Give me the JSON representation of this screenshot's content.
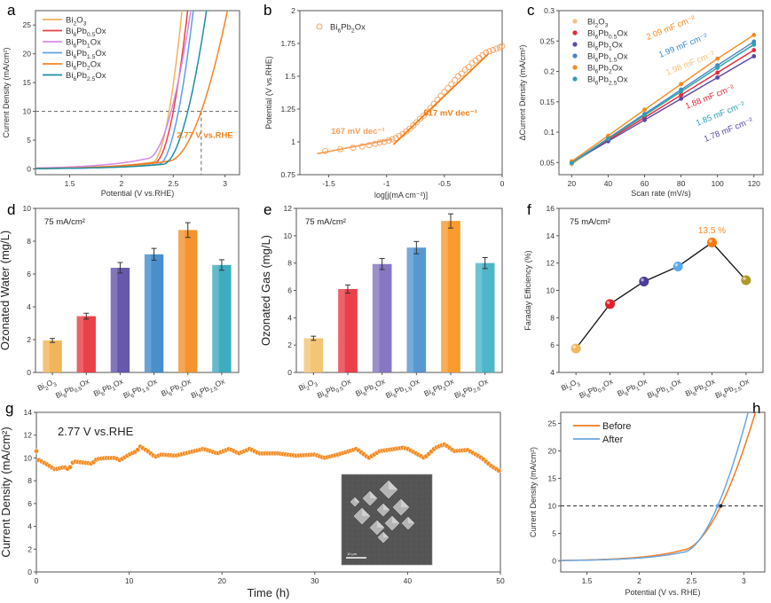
{
  "figure": {
    "panels": [
      "a",
      "b",
      "c",
      "d",
      "e",
      "f",
      "g",
      "h"
    ]
  },
  "chart_data": [
    {
      "id": "a",
      "type": "line",
      "letter": "a",
      "xlabel": "Potential (V vs.RHE)",
      "ylabel": "Current Density (mA/cm²)",
      "xlim": [
        1.17,
        3.14
      ],
      "ylim": [
        -1,
        27.5
      ],
      "xticks": [
        "1.5",
        "2",
        "2.5",
        "3"
      ],
      "xtick_values": [
        1.5,
        2,
        2.5,
        3
      ],
      "yticks": [
        "0",
        "5",
        "10",
        "15",
        "20",
        "25"
      ],
      "ytick_values": [
        0,
        5,
        10,
        15,
        20,
        25
      ],
      "reference_line_y": 10,
      "reference_line_x": 2.77,
      "annotation": "2.77 V vs.RHE",
      "annotation_color": "#f5841f",
      "legend": [
        "Bi2O3",
        "Bi6Pb0.5Ox",
        "Bi6Pb1Ox",
        "Bi6Pb1.5Ox",
        "Bi6Pb2Ox",
        "Bi6Pb2.5Ox"
      ],
      "series": [
        {
          "name": "Bi2O3",
          "color": "#f0b35a",
          "onset": 2.3,
          "v10": 2.46,
          "base": 1.3
        },
        {
          "name": "Bi6Pb0.5Ox",
          "color": "#e8434a",
          "onset": 2.32,
          "v10": 2.5,
          "base": 1.2
        },
        {
          "name": "Bi6Pb1Ox",
          "color": "#d58be6",
          "onset": 2.25,
          "v10": 2.48,
          "base": 2.0
        },
        {
          "name": "Bi6Pb1.5Ox",
          "color": "#5aa0e6",
          "onset": 2.36,
          "v10": 2.55,
          "base": 0.9
        },
        {
          "name": "Bi6Pb2Ox",
          "color": "#f5841f",
          "onset": 2.45,
          "v10": 2.77,
          "base": 1.5
        },
        {
          "name": "Bi6Pb2.5Ox",
          "color": "#1f8fa0",
          "onset": 2.4,
          "v10": 2.64,
          "base": 0.9
        }
      ]
    },
    {
      "id": "b",
      "type": "scatter",
      "letter": "b",
      "xlabel": "log[j(mA cm⁻²)]",
      "ylabel": "Potential (V vs.RHE)",
      "xlim": [
        -1.75,
        0
      ],
      "ylim": [
        0.75,
        2
      ],
      "xticks": [
        "-1.5",
        "-1",
        "-0.5",
        "0"
      ],
      "xtick_values": [
        -1.5,
        -1,
        -0.5,
        0
      ],
      "yticks": [
        "0.75",
        "1",
        "1.25",
        "1.5",
        "1.75",
        "2"
      ],
      "ytick_values": [
        0.75,
        1,
        1.25,
        1.5,
        1.75,
        2
      ],
      "legend": [
        "Bi6Pb2Ox"
      ],
      "color": "#f5a05a",
      "points": [
        [
          -1.53,
          0.93
        ],
        [
          -1.4,
          0.945
        ],
        [
          -1.29,
          0.955
        ],
        [
          -1.21,
          0.965
        ],
        [
          -1.15,
          0.975
        ],
        [
          -1.1,
          0.985
        ],
        [
          -1.06,
          0.995
        ],
        [
          -1.02,
          1.0
        ],
        [
          -0.98,
          1.01
        ],
        [
          -0.95,
          1.02
        ],
        [
          -0.92,
          1.03
        ],
        [
          -0.89,
          1.045
        ],
        [
          -0.86,
          1.06
        ],
        [
          -0.83,
          1.08
        ],
        [
          -0.8,
          1.1
        ],
        [
          -0.77,
          1.125
        ],
        [
          -0.74,
          1.15
        ],
        [
          -0.71,
          1.175
        ],
        [
          -0.68,
          1.2
        ],
        [
          -0.65,
          1.23
        ],
        [
          -0.62,
          1.26
        ],
        [
          -0.59,
          1.29
        ],
        [
          -0.56,
          1.32
        ],
        [
          -0.53,
          1.35
        ],
        [
          -0.5,
          1.38
        ],
        [
          -0.47,
          1.41
        ],
        [
          -0.44,
          1.44
        ],
        [
          -0.41,
          1.47
        ],
        [
          -0.38,
          1.5
        ],
        [
          -0.35,
          1.52
        ],
        [
          -0.32,
          1.55
        ],
        [
          -0.29,
          1.57
        ],
        [
          -0.26,
          1.6
        ],
        [
          -0.23,
          1.62
        ],
        [
          -0.2,
          1.64
        ],
        [
          -0.17,
          1.66
        ],
        [
          -0.14,
          1.68
        ],
        [
          -0.11,
          1.69
        ],
        [
          -0.08,
          1.7
        ],
        [
          -0.05,
          1.71
        ],
        [
          -0.02,
          1.72
        ],
        [
          0.0,
          1.73
        ]
      ],
      "fits": [
        {
          "label": "167 mV dec⁻¹",
          "from": [
            -1.6,
            0.91
          ],
          "to": [
            -0.95,
            1.02
          ],
          "color": "#f5a05a"
        },
        {
          "label": "817 mV dec⁻¹",
          "from": [
            -0.94,
            0.98
          ],
          "to": [
            -0.12,
            1.67
          ],
          "color": "#f07f1a"
        }
      ]
    },
    {
      "id": "c",
      "type": "scatter",
      "letter": "c",
      "xlabel": "Scan rate (mV/s)",
      "ylabel": "ΔCurrent Density (mA/cm²)",
      "xlim": [
        13,
        125
      ],
      "ylim": [
        0.03,
        0.3
      ],
      "xticks": [
        "20",
        "40",
        "60",
        "80",
        "100",
        "120"
      ],
      "xtick_values": [
        20,
        40,
        60,
        80,
        100,
        120
      ],
      "yticks": [
        "0.05",
        "0.1",
        "0.15",
        "0.2",
        "0.25",
        "0.3"
      ],
      "ytick_values": [
        0.05,
        0.1,
        0.15,
        0.2,
        0.25,
        0.3
      ],
      "x": [
        20,
        40,
        60,
        80,
        100,
        120
      ],
      "series": [
        {
          "name": "Bi2O3",
          "color": "#f5c27a",
          "values": [
            0.047,
            0.088,
            0.127,
            0.166,
            0.206,
            0.245
          ],
          "slope_label": "1.98 mF cm⁻²"
        },
        {
          "name": "Bi6Pb0.5Ox",
          "color": "#e8283a",
          "values": [
            0.05,
            0.087,
            0.124,
            0.161,
            0.198,
            0.235
          ],
          "slope_label": "1.88 mF cm⁻²"
        },
        {
          "name": "Bi6Pb1Ox",
          "color": "#5b46a8",
          "values": [
            0.05,
            0.085,
            0.12,
            0.155,
            0.19,
            0.225
          ],
          "slope_label": "1.78 mF cm⁻²"
        },
        {
          "name": "Bi6Pb1.5Ox",
          "color": "#3f86c6",
          "values": [
            0.05,
            0.09,
            0.13,
            0.17,
            0.21,
            0.249
          ],
          "slope_label": "1.99 mF cm⁻²"
        },
        {
          "name": "Bi6Pb2Ox",
          "color": "#f58a1f",
          "values": [
            0.052,
            0.094,
            0.137,
            0.179,
            0.221,
            0.26
          ],
          "slope_label": "2.09 mF cm⁻²"
        },
        {
          "name": "Bi6Pb2.5Ox",
          "color": "#2aa3b3",
          "values": [
            0.049,
            0.089,
            0.128,
            0.167,
            0.206,
            0.244
          ],
          "slope_label": "1.85 mF cm⁻²"
        }
      ]
    },
    {
      "id": "d",
      "type": "bar",
      "letter": "d",
      "annotation": "75 mA/cm²",
      "ylabel": "Ozonated Water (mg/L)",
      "ylim": [
        0,
        10
      ],
      "yticks": [
        "0",
        "2",
        "4",
        "6",
        "8",
        "10"
      ],
      "ytick_values": [
        0,
        2,
        4,
        6,
        8,
        10
      ],
      "categories": [
        "Bi2O3",
        "Bi6Pb0.5Ox",
        "Bi6Pb1Ox",
        "Bi6Pb1.5Ox",
        "Bi6Pb2Ox",
        "Bi6Pb2.5Ox"
      ],
      "values": [
        1.95,
        3.43,
        6.38,
        7.2,
        8.68,
        6.55
      ],
      "errors": [
        0.12,
        0.18,
        0.32,
        0.36,
        0.45,
        0.32
      ],
      "colors": [
        "#f0b04c",
        "#e8303a",
        "#5a4aa6",
        "#3a86c8",
        "#f58a1f",
        "#2fa6bb"
      ]
    },
    {
      "id": "e",
      "type": "bar",
      "letter": "e",
      "annotation": "75 mA/cm²",
      "ylabel": "Ozonated Gas (mg/L)",
      "ylim": [
        0,
        12
      ],
      "yticks": [
        "0",
        "2",
        "4",
        "6",
        "8",
        "10",
        "12"
      ],
      "ytick_values": [
        0,
        2,
        4,
        6,
        8,
        10,
        12
      ],
      "categories": [
        "Bi2O3",
        "Bi6Pb0.5Ox",
        "Bi6Pb1Ox",
        "Bi6Pb1.5Ox",
        "Bi6Pb2Ox",
        "Bi6Pb2.5Ox"
      ],
      "values": [
        2.5,
        6.1,
        7.93,
        9.13,
        11.08,
        8.0
      ],
      "errors": [
        0.15,
        0.3,
        0.4,
        0.45,
        0.52,
        0.4
      ],
      "colors": [
        "#f3c06a",
        "#e8303a",
        "#7d6bbd",
        "#4a8fcc",
        "#f7941d",
        "#3fb0c4"
      ]
    },
    {
      "id": "f",
      "type": "line",
      "letter": "f",
      "annotation": "75 mA/cm²",
      "highlight_label": "13.5 %",
      "highlight_color": "#f58a1f",
      "ylabel": "Faraday Efficiency (%)",
      "ylim": [
        4,
        16
      ],
      "yticks": [
        "4",
        "6",
        "8",
        "10",
        "12",
        "14",
        "16"
      ],
      "ytick_values": [
        4,
        6,
        8,
        10,
        12,
        14,
        16
      ],
      "categories": [
        "Bi2O3",
        "Bi6Pb0.5Ox",
        "Bi6Pb1Ox",
        "Bi6Pb1.5Ox",
        "Bi6Pb2Ox",
        "Bi6Pb2.5Ox"
      ],
      "values": [
        5.75,
        9.0,
        10.65,
        11.75,
        13.5,
        10.75
      ],
      "colors": [
        "#f0b860",
        "#e0202a",
        "#4a3c98",
        "#5aa8f0",
        "#f57a10",
        "#b09a28"
      ]
    },
    {
      "id": "g",
      "type": "scatter",
      "letter": "g",
      "annotation": "2.77 V vs.RHE",
      "xlabel": "Time (h)",
      "ylabel": "Current Density (mA/cm²)",
      "xlim": [
        0,
        50
      ],
      "ylim": [
        0,
        14
      ],
      "xticks": [
        "0",
        "10",
        "20",
        "30",
        "40",
        "50"
      ],
      "xtick_values": [
        0,
        10,
        20,
        30,
        40,
        50
      ],
      "yticks": [
        "0",
        "2",
        "4",
        "6",
        "8",
        "10",
        "12",
        "14"
      ],
      "ytick_values": [
        0,
        2,
        4,
        6,
        8,
        10,
        12,
        14
      ],
      "color": "#f58a1f",
      "key_points": [
        [
          0,
          10.6
        ],
        [
          0.1,
          9.9
        ],
        [
          1,
          9.5
        ],
        [
          2,
          9.0
        ],
        [
          2.5,
          9.1
        ],
        [
          3,
          9.2
        ],
        [
          3.5,
          9.0
        ],
        [
          4,
          9.7
        ],
        [
          5,
          9.6
        ],
        [
          6,
          9.5
        ],
        [
          6.5,
          9.9
        ],
        [
          7.5,
          10.0
        ],
        [
          8.5,
          10.0
        ],
        [
          9,
          9.8
        ],
        [
          10,
          10.3
        ],
        [
          10.8,
          10.6
        ],
        [
          11.2,
          11.0
        ],
        [
          12,
          10.6
        ],
        [
          12.8,
          10.1
        ],
        [
          13.5,
          10.3
        ],
        [
          15,
          10.2
        ],
        [
          16.5,
          10.5
        ],
        [
          18,
          10.8
        ],
        [
          19.5,
          10.4
        ],
        [
          20.8,
          10.8
        ],
        [
          21.8,
          10.4
        ],
        [
          23,
          10.8
        ],
        [
          24,
          10.4
        ],
        [
          26,
          10.4
        ],
        [
          28,
          10.2
        ],
        [
          30,
          10.3
        ],
        [
          31,
          10.0
        ],
        [
          32.5,
          10.3
        ],
        [
          34.5,
          10.8
        ],
        [
          35.8,
          10.0
        ],
        [
          37,
          10.6
        ],
        [
          39.5,
          10.9
        ],
        [
          40,
          10.8
        ],
        [
          41.8,
          10.0
        ],
        [
          43,
          10.9
        ],
        [
          44,
          11.2
        ],
        [
          45,
          10.6
        ],
        [
          46.5,
          10.7
        ],
        [
          48,
          10.0
        ],
        [
          49,
          9.3
        ],
        [
          50,
          8.8
        ]
      ],
      "inset": {
        "scale_bar": "10 μm"
      }
    },
    {
      "id": "h",
      "type": "line",
      "letter": "h",
      "xlabel": "Potential (V vs. RHE)",
      "ylabel": "Current Density (mA/cm²)",
      "xlim": [
        1.25,
        3.2
      ],
      "ylim": [
        -2,
        27
      ],
      "xticks": [
        "1.5",
        "2",
        "2.5",
        "3"
      ],
      "xtick_values": [
        1.5,
        2,
        2.5,
        3
      ],
      "yticks": [
        "0",
        "5",
        "10",
        "15",
        "20",
        "25"
      ],
      "ytick_values": [
        0,
        5,
        10,
        15,
        20,
        25
      ],
      "reference_line_y": 10,
      "legend": [
        "Before",
        "After"
      ],
      "series": [
        {
          "name": "Before",
          "color": "#f57a1f",
          "onset": 2.42,
          "v10": 2.78,
          "base": 2.0
        },
        {
          "name": "After",
          "color": "#6aa6e0",
          "onset": 2.42,
          "v10": 2.75,
          "base": 1.6
        }
      ]
    }
  ]
}
